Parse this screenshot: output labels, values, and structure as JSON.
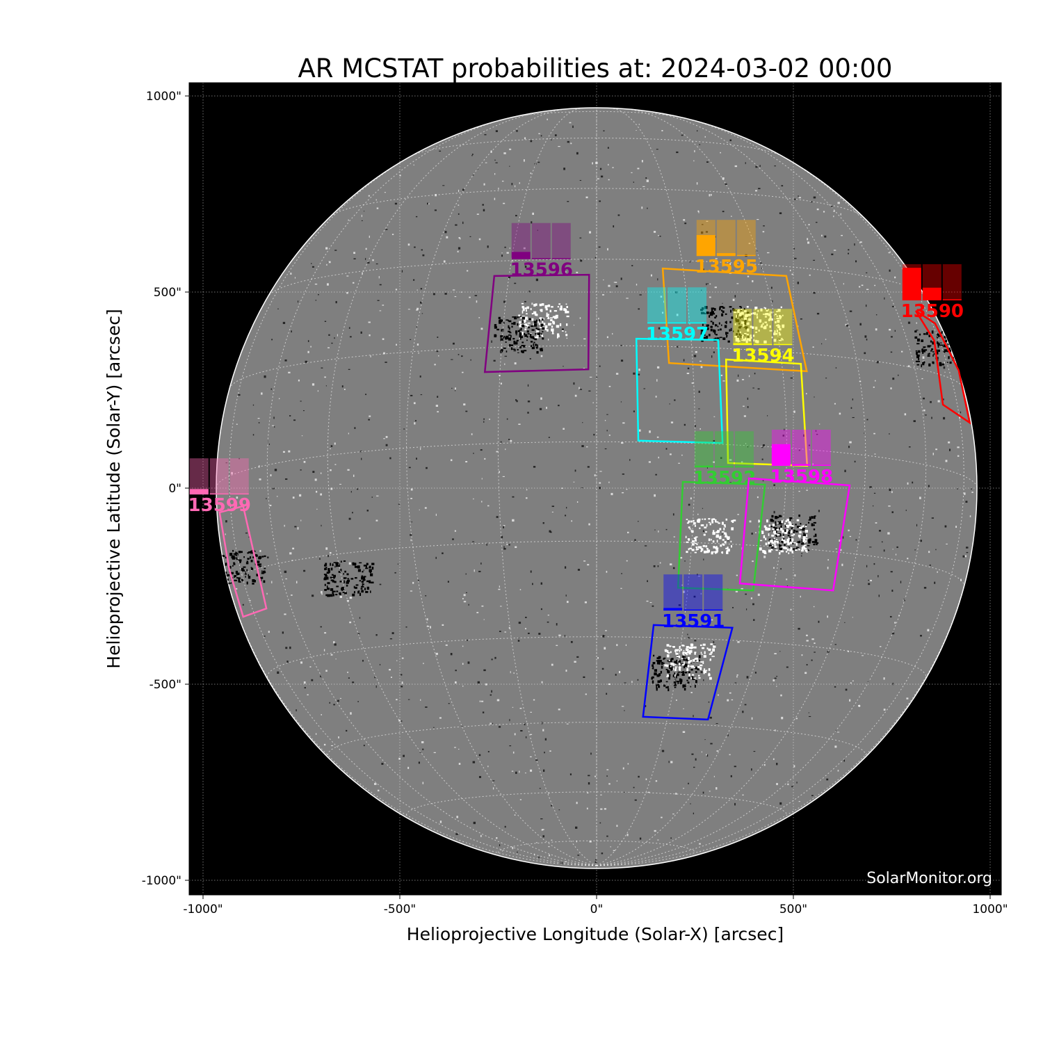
{
  "chart_data": {
    "type": "scatter",
    "title": "AR MCSTAT probabilities at: 2024-03-02 00:00",
    "xlabel": "Helioprojective Longitude (Solar-X) [arcsec]",
    "ylabel": "Helioprojective Latitude (Solar-Y) [arcsec]",
    "xlim": [
      -1033,
      1033
    ],
    "ylim": [
      -1033,
      1033
    ],
    "xticks": [
      -1000,
      -500,
      0,
      500,
      1000
    ],
    "xtick_labels": [
      "-1000\"",
      "-500\"",
      "0\"",
      "500\"",
      "1000\""
    ],
    "yticks": [
      1000,
      500,
      0,
      -500,
      -1000
    ],
    "ytick_labels": [
      "1000\"",
      "500\"",
      "0\"",
      "-500\"",
      "-1000\""
    ],
    "grid": true,
    "background": "magnetogram",
    "credit": "SolarMonitor.org",
    "regions": [
      {
        "noaa": "13596",
        "color": "#800080",
        "probabilities": {
          "C": 0.2,
          "M": 0.02,
          "X": 0.0
        },
        "label_xy": [
          -140,
          559
        ],
        "box": [
          [
            -260,
            541
          ],
          [
            -19,
            544
          ],
          [
            -21,
            303
          ],
          [
            -284,
            296
          ]
        ]
      },
      {
        "noaa": "13595",
        "color": "#ffa500",
        "probabilities": {
          "C": 0.58,
          "M": 0.08,
          "X": 0.02
        },
        "label_xy": [
          330,
          567
        ],
        "box": [
          [
            168,
            560
          ],
          [
            482,
            541
          ],
          [
            534,
            298
          ],
          [
            184,
            319
          ]
        ]
      },
      {
        "noaa": "13597",
        "color": "#00ffff",
        "probabilities": {
          "C": 0.0,
          "M": 0.0,
          "X": 0.0
        },
        "label_xy": [
          205,
          395
        ],
        "box": [
          [
            101,
            381
          ],
          [
            309,
            378
          ],
          [
            320,
            115
          ],
          [
            106,
            121
          ]
        ]
      },
      {
        "noaa": "13594",
        "color": "#ffff00",
        "probabilities": {
          "C": 0.05,
          "M": 0.0,
          "X": 0.0
        },
        "label_xy": [
          423,
          340
        ],
        "box": [
          [
            329,
            328
          ],
          [
            519,
            317
          ],
          [
            535,
            57
          ],
          [
            334,
            64
          ]
        ]
      },
      {
        "noaa": "13590",
        "color": "#ff0000",
        "probabilities": {
          "C": 0.9,
          "M": 0.35,
          "X": 0.03
        },
        "label_xy": [
          853,
          454
        ],
        "box": [
          [
            811,
            452
          ],
          [
            858,
            376
          ],
          [
            880,
            213
          ],
          [
            948,
            167
          ],
          [
            920,
            300
          ],
          [
            860,
            420
          ]
        ]
      },
      {
        "noaa": "13592",
        "color": "#32cd32",
        "probabilities": {
          "C": 0.05,
          "M": 0.0,
          "X": 0.0
        },
        "label_xy": [
          325,
          28
        ],
        "box": [
          [
            219,
            16
          ],
          [
            428,
            9
          ],
          [
            398,
            -261
          ],
          [
            207,
            -254
          ]
        ]
      },
      {
        "noaa": "13598",
        "color": "#ff00ff",
        "probabilities": {
          "C": 0.6,
          "M": 0.05,
          "X": 0.0
        },
        "label_xy": [
          521,
          32
        ],
        "box": [
          [
            387,
            25
          ],
          [
            643,
            7
          ],
          [
            601,
            -261
          ],
          [
            364,
            -243
          ]
        ]
      },
      {
        "noaa": "13591",
        "color": "#0000ff",
        "probabilities": {
          "C": 0.07,
          "M": 0.0,
          "X": 0.0
        },
        "label_xy": [
          246,
          -337
        ],
        "box": [
          [
            145,
            -349
          ],
          [
            345,
            -356
          ],
          [
            283,
            -590
          ],
          [
            118,
            -583
          ]
        ]
      },
      {
        "noaa": "13599",
        "color": "#ff69b4",
        "probabilities": {
          "C": 0.15,
          "M": 0.0,
          "X": 0.0
        },
        "label_xy": [
          -958,
          -41
        ],
        "box": [
          [
            -958,
            -62
          ],
          [
            -898,
            -46
          ],
          [
            -839,
            -307
          ],
          [
            -898,
            -328
          ],
          [
            -933,
            -209
          ]
        ]
      }
    ]
  }
}
